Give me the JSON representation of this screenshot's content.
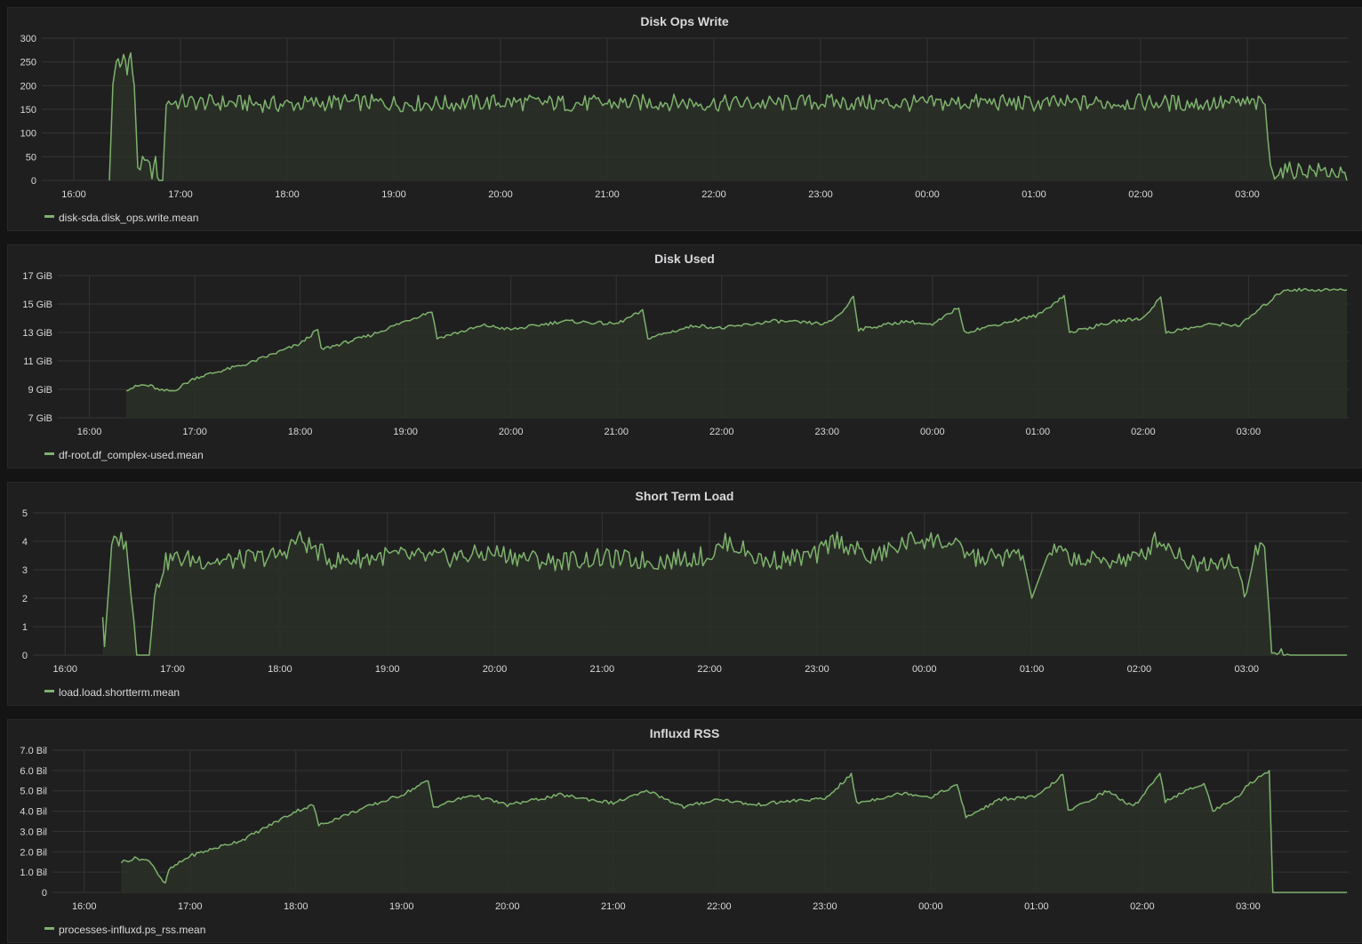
{
  "theme": {
    "line_color": "#7eb26d",
    "fill_color": "#2a3127",
    "grid_color": "#353535",
    "axis_text_color": "#d8d9da"
  },
  "x_ticks": [
    "16:00",
    "17:00",
    "18:00",
    "19:00",
    "20:00",
    "21:00",
    "22:00",
    "23:00",
    "00:00",
    "01:00",
    "02:00",
    "03:00"
  ],
  "chart_data": [
    {
      "type": "area",
      "title": "Disk Ops Write",
      "ylim": [
        0,
        300
      ],
      "y_ticks": [
        {
          "value": 0,
          "label": "0"
        },
        {
          "value": 50,
          "label": "50"
        },
        {
          "value": 100,
          "label": "100"
        },
        {
          "value": 150,
          "label": "150"
        },
        {
          "value": 200,
          "label": "200"
        },
        {
          "value": 250,
          "label": "250"
        },
        {
          "value": 300,
          "label": "300"
        }
      ],
      "x_ticks": [
        "16:00",
        "17:00",
        "18:00",
        "19:00",
        "20:00",
        "21:00",
        "22:00",
        "23:00",
        "00:00",
        "01:00",
        "02:00",
        "03:00"
      ],
      "grid": true,
      "legend_position": "bottom-left",
      "series": [
        {
          "name": "disk-sda.disk_ops.write.mean",
          "points": [
            [
              "16:20",
              0
            ],
            [
              "16:22",
              200
            ],
            [
              "16:24",
              260
            ],
            [
              "16:26",
              230
            ],
            [
              "16:28",
              265
            ],
            [
              "16:30",
              240
            ],
            [
              "16:32",
              265
            ],
            [
              "16:34",
              200
            ],
            [
              "16:36",
              30
            ],
            [
              "16:40",
              35
            ],
            [
              "16:44",
              20
            ],
            [
              "16:46",
              35
            ],
            [
              "16:48",
              0
            ],
            [
              "16:50",
              0
            ],
            [
              "16:52",
              165
            ],
            [
              "17:00",
              165
            ],
            [
              "17:30",
              163
            ],
            [
              "18:00",
              160
            ],
            [
              "18:30",
              165
            ],
            [
              "19:00",
              163
            ],
            [
              "19:30",
              162
            ],
            [
              "20:00",
              165
            ],
            [
              "20:30",
              163
            ],
            [
              "21:00",
              162
            ],
            [
              "21:30",
              165
            ],
            [
              "22:00",
              163
            ],
            [
              "22:30",
              162
            ],
            [
              "23:00",
              165
            ],
            [
              "23:30",
              163
            ],
            [
              "00:00",
              162
            ],
            [
              "00:30",
              165
            ],
            [
              "01:00",
              162
            ],
            [
              "01:30",
              163
            ],
            [
              "02:00",
              165
            ],
            [
              "02:30",
              162
            ],
            [
              "03:00",
              163
            ],
            [
              "03:10",
              160
            ],
            [
              "03:13",
              20
            ],
            [
              "03:20",
              20
            ],
            [
              "03:30",
              22
            ],
            [
              "03:40",
              20
            ],
            [
              "03:50",
              18
            ],
            [
              "03:56",
              0
            ]
          ]
        }
      ]
    },
    {
      "type": "area",
      "title": "Disk Used",
      "ylim": [
        7,
        17
      ],
      "y_ticks": [
        {
          "value": 7,
          "label": "7 GiB"
        },
        {
          "value": 9,
          "label": "9 GiB"
        },
        {
          "value": 11,
          "label": "11 GiB"
        },
        {
          "value": 13,
          "label": "13 GiB"
        },
        {
          "value": 15,
          "label": "15 GiB"
        },
        {
          "value": 17,
          "label": "17 GiB"
        }
      ],
      "x_ticks": [
        "16:00",
        "17:00",
        "18:00",
        "19:00",
        "20:00",
        "21:00",
        "22:00",
        "23:00",
        "00:00",
        "01:00",
        "02:00",
        "03:00"
      ],
      "grid": true,
      "legend_position": "bottom-left",
      "series": [
        {
          "name": "df-root.df_complex-used.mean",
          "points": [
            [
              "16:21",
              9.0
            ],
            [
              "16:30",
              9.3
            ],
            [
              "16:36",
              9.2
            ],
            [
              "16:40",
              8.9
            ],
            [
              "16:48",
              8.9
            ],
            [
              "17:00",
              9.8
            ],
            [
              "17:30",
              10.8
            ],
            [
              "18:00",
              12.2
            ],
            [
              "18:10",
              13.2
            ],
            [
              "18:12",
              11.8
            ],
            [
              "18:40",
              12.8
            ],
            [
              "19:00",
              13.8
            ],
            [
              "19:15",
              14.5
            ],
            [
              "19:18",
              12.6
            ],
            [
              "19:45",
              13.5
            ],
            [
              "20:00",
              13.2
            ],
            [
              "20:30",
              13.8
            ],
            [
              "21:00",
              13.6
            ],
            [
              "21:15",
              14.5
            ],
            [
              "21:18",
              12.6
            ],
            [
              "21:45",
              13.5
            ],
            [
              "22:00",
              13.3
            ],
            [
              "22:30",
              13.8
            ],
            [
              "23:00",
              13.6
            ],
            [
              "23:10",
              14.6
            ],
            [
              "23:15",
              15.6
            ],
            [
              "23:18",
              13.2
            ],
            [
              "23:45",
              13.8
            ],
            [
              "00:00",
              13.5
            ],
            [
              "00:15",
              14.8
            ],
            [
              "00:18",
              13.0
            ],
            [
              "00:45",
              13.8
            ],
            [
              "01:00",
              14.2
            ],
            [
              "01:15",
              15.6
            ],
            [
              "01:18",
              13.0
            ],
            [
              "01:45",
              13.8
            ],
            [
              "02:00",
              14.0
            ],
            [
              "02:10",
              15.5
            ],
            [
              "02:13",
              13.0
            ],
            [
              "02:40",
              13.6
            ],
            [
              "02:55",
              13.5
            ],
            [
              "03:10",
              15.0
            ],
            [
              "03:20",
              16.0
            ],
            [
              "03:40",
              16.0
            ],
            [
              "03:56",
              16.0
            ]
          ]
        }
      ]
    },
    {
      "type": "area",
      "title": "Short Term Load",
      "ylim": [
        0,
        5
      ],
      "y_ticks": [
        {
          "value": 0,
          "label": "0"
        },
        {
          "value": 1,
          "label": "1"
        },
        {
          "value": 2,
          "label": "2"
        },
        {
          "value": 3,
          "label": "3"
        },
        {
          "value": 4,
          "label": "4"
        },
        {
          "value": 5,
          "label": "5"
        }
      ],
      "x_ticks": [
        "16:00",
        "17:00",
        "18:00",
        "19:00",
        "20:00",
        "21:00",
        "22:00",
        "23:00",
        "00:00",
        "01:00",
        "02:00",
        "03:00"
      ],
      "grid": true,
      "legend_position": "bottom-left",
      "series": [
        {
          "name": "load.load.shortterm.mean",
          "points": [
            [
              "16:21",
              1.5
            ],
            [
              "16:22",
              0.3
            ],
            [
              "16:26",
              3.8
            ],
            [
              "16:30",
              4.1
            ],
            [
              "16:34",
              4.0
            ],
            [
              "16:37",
              2.0
            ],
            [
              "16:40",
              0.3
            ],
            [
              "16:43",
              0.0
            ],
            [
              "16:47",
              0.0
            ],
            [
              "16:50",
              2.0
            ],
            [
              "16:55",
              3.2
            ],
            [
              "17:00",
              3.4
            ],
            [
              "17:30",
              3.3
            ],
            [
              "18:00",
              3.5
            ],
            [
              "18:10",
              4.1
            ],
            [
              "18:30",
              3.3
            ],
            [
              "19:00",
              3.5
            ],
            [
              "19:30",
              3.4
            ],
            [
              "20:00",
              3.6
            ],
            [
              "20:30",
              3.3
            ],
            [
              "21:00",
              3.4
            ],
            [
              "21:30",
              3.3
            ],
            [
              "22:00",
              3.5
            ],
            [
              "22:10",
              4.0
            ],
            [
              "22:30",
              3.3
            ],
            [
              "22:60",
              3.5
            ],
            [
              "23:10",
              4.1
            ],
            [
              "23:30",
              3.4
            ],
            [
              "23:55",
              4.1
            ],
            [
              "00:10",
              4.0
            ],
            [
              "00:30",
              3.4
            ],
            [
              "00:55",
              3.5
            ],
            [
              "01:00",
              2.0
            ],
            [
              "01:10",
              3.7
            ],
            [
              "01:30",
              3.3
            ],
            [
              "02:00",
              3.4
            ],
            [
              "02:10",
              4.1
            ],
            [
              "02:30",
              3.2
            ],
            [
              "02:50",
              3.4
            ],
            [
              "03:00",
              2.2
            ],
            [
              "03:05",
              3.7
            ],
            [
              "03:10",
              3.8
            ],
            [
              "03:14",
              0.3
            ],
            [
              "03:17",
              0.0
            ],
            [
              "03:24",
              0.1
            ],
            [
              "03:27",
              0.0
            ],
            [
              "03:56",
              0.0
            ]
          ]
        }
      ]
    },
    {
      "type": "area",
      "title": "Influxd RSS",
      "ylim": [
        0,
        7
      ],
      "y_ticks": [
        {
          "value": 0,
          "label": "0"
        },
        {
          "value": 1,
          "label": "1.0 Bil"
        },
        {
          "value": 2,
          "label": "2.0 Bil"
        },
        {
          "value": 3,
          "label": "3.0 Bil"
        },
        {
          "value": 4,
          "label": "4.0 Bil"
        },
        {
          "value": 5,
          "label": "5.0 Bil"
        },
        {
          "value": 6,
          "label": "6.0 Bil"
        },
        {
          "value": 7,
          "label": "7.0 Bil"
        }
      ],
      "x_ticks": [
        "16:00",
        "17:00",
        "18:00",
        "19:00",
        "20:00",
        "21:00",
        "22:00",
        "23:00",
        "00:00",
        "01:00",
        "02:00",
        "03:00"
      ],
      "grid": true,
      "legend_position": "bottom-left",
      "series": [
        {
          "name": "processes-influxd.ps_rss.mean",
          "points": [
            [
              "16:21",
              1.5
            ],
            [
              "16:30",
              1.7
            ],
            [
              "16:38",
              1.5
            ],
            [
              "16:42",
              0.9
            ],
            [
              "16:46",
              0.4
            ],
            [
              "16:48",
              1.1
            ],
            [
              "17:00",
              1.8
            ],
            [
              "17:30",
              2.6
            ],
            [
              "18:00",
              4.0
            ],
            [
              "18:10",
              4.3
            ],
            [
              "18:13",
              3.3
            ],
            [
              "18:40",
              4.2
            ],
            [
              "19:00",
              4.8
            ],
            [
              "19:15",
              5.5
            ],
            [
              "19:18",
              4.2
            ],
            [
              "19:40",
              4.8
            ],
            [
              "20:00",
              4.3
            ],
            [
              "20:30",
              4.8
            ],
            [
              "21:00",
              4.4
            ],
            [
              "21:20",
              5.0
            ],
            [
              "21:40",
              4.2
            ],
            [
              "22:00",
              4.6
            ],
            [
              "22:20",
              4.3
            ],
            [
              "22:40",
              4.5
            ],
            [
              "23:00",
              4.6
            ],
            [
              "23:10",
              5.4
            ],
            [
              "23:15",
              5.8
            ],
            [
              "23:18",
              4.4
            ],
            [
              "23:45",
              4.9
            ],
            [
              "00:00",
              4.7
            ],
            [
              "00:15",
              5.3
            ],
            [
              "00:20",
              3.7
            ],
            [
              "00:40",
              4.6
            ],
            [
              "01:00",
              4.7
            ],
            [
              "01:15",
              5.8
            ],
            [
              "01:18",
              4.0
            ],
            [
              "01:40",
              5.0
            ],
            [
              "01:55",
              4.2
            ],
            [
              "02:10",
              5.9
            ],
            [
              "02:13",
              4.5
            ],
            [
              "02:35",
              5.4
            ],
            [
              "02:40",
              4.0
            ],
            [
              "02:55",
              4.8
            ],
            [
              "03:00",
              5.3
            ],
            [
              "03:12",
              6.0
            ],
            [
              "03:14",
              0.0
            ],
            [
              "03:56",
              0.0
            ]
          ]
        }
      ]
    }
  ]
}
